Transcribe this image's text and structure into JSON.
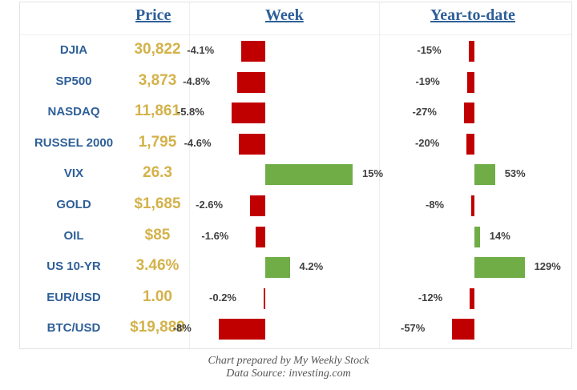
{
  "headers": {
    "price": "Price",
    "week": "Week",
    "ytd": "Year-to-date"
  },
  "colors": {
    "negative": "#c00000",
    "positive": "#70ad47",
    "name_text": "#2e5f98",
    "price_text": "#d4b24a"
  },
  "chart_data": {
    "type": "table",
    "columns": [
      "Price",
      "Week",
      "Year-to-date"
    ],
    "rows": [
      {
        "name": "DJIA",
        "price": "30,822",
        "week": -4.1,
        "week_label": "-4.1%",
        "ytd": -15,
        "ytd_label": "-15%"
      },
      {
        "name": "SP500",
        "price": "3,873",
        "week": -4.8,
        "week_label": "-4.8%",
        "ytd": -19,
        "ytd_label": "-19%"
      },
      {
        "name": "NASDAQ",
        "price": "11,861",
        "week": -5.8,
        "week_label": "-5.8%",
        "ytd": -27,
        "ytd_label": "-27%"
      },
      {
        "name": "RUSSEL 2000",
        "price": "1,795",
        "week": -4.6,
        "week_label": "-4.6%",
        "ytd": -20,
        "ytd_label": "-20%"
      },
      {
        "name": "VIX",
        "price": "26.3",
        "week": 15,
        "week_label": "15%",
        "ytd": 53,
        "ytd_label": "53%"
      },
      {
        "name": "GOLD",
        "price": "$1,685",
        "week": -2.6,
        "week_label": "-2.6%",
        "ytd": -8,
        "ytd_label": "-8%"
      },
      {
        "name": "OIL",
        "price": "$85",
        "week": -1.6,
        "week_label": "-1.6%",
        "ytd": 14,
        "ytd_label": "14%"
      },
      {
        "name": "US 10-YR",
        "price": "3.46%",
        "week": 4.2,
        "week_label": "4.2%",
        "ytd": 129,
        "ytd_label": "129%"
      },
      {
        "name": "EUR/USD",
        "price": "1.00",
        "week": -0.2,
        "week_label": "-0.2%",
        "ytd": -12,
        "ytd_label": "-12%"
      },
      {
        "name": "BTC/USD",
        "price": "$19,889",
        "week": -8,
        "week_label": "-8%",
        "ytd": -57,
        "ytd_label": "-57%"
      }
    ]
  },
  "footer": {
    "line1": "Chart prepared by My Weekly Stock",
    "line2": "Data Source: investing.com"
  }
}
